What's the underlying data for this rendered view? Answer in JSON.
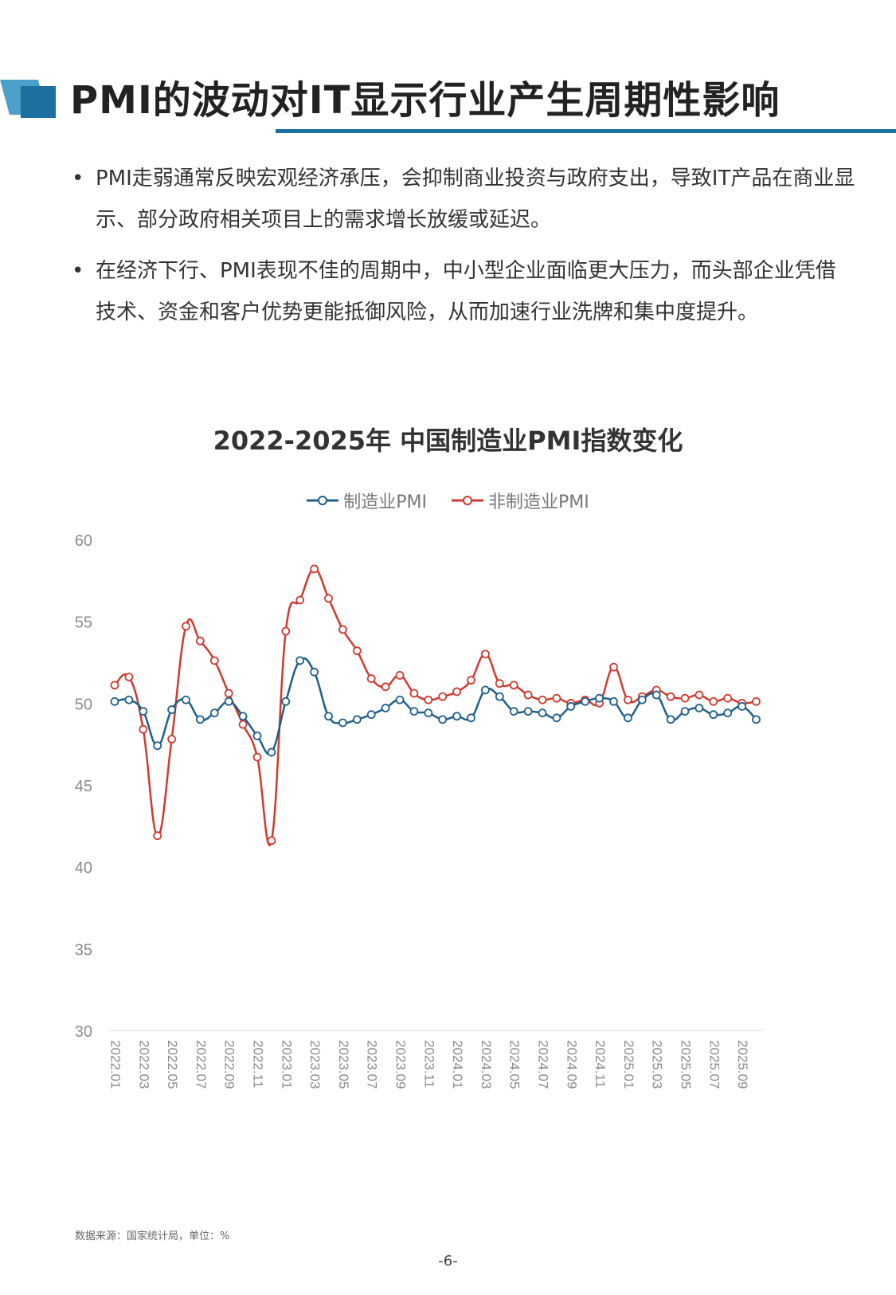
{
  "page": {
    "title": "PMI的波动对IT显示行业产生周期性影响",
    "bullets": [
      {
        "text": "PMI走弱通常反映宏观经济承压，会抑制商业投资与政府支出，导致IT产品在商业显示、部分政府相关项目上的需求增长放缓或延迟。"
      },
      {
        "text": "在经济下行、PMI表现不佳的周期中，中小型企业面临更大压力，而头部企业凭借技术、资金和客户优势更能抵御风险，从而加速行业洗牌和集中度提升。"
      }
    ],
    "bullet_symbol": "•",
    "source": "数据来源：国家统计局，单位：%",
    "page_number": "-6-"
  },
  "chart_data": {
    "type": "line",
    "title": "2022-2025年 中国制造业PMI指数变化",
    "xlabel": "",
    "ylabel": "",
    "ylim": [
      30,
      60
    ],
    "yticks": [
      "30",
      "35",
      "40",
      "45",
      "50",
      "55",
      "60"
    ],
    "x": [
      "2022.01",
      "2022.02",
      "2022.03",
      "2022.04",
      "2022.05",
      "2022.06",
      "2022.07",
      "2022.08",
      "2022.09",
      "2022.10",
      "2022.11",
      "2022.12",
      "2023.01",
      "2023.02",
      "2023.03",
      "2023.04",
      "2023.05",
      "2023.06",
      "2023.07",
      "2023.08",
      "2023.09",
      "2023.10",
      "2023.11",
      "2023.12",
      "2024.01",
      "2024.02",
      "2024.03",
      "2024.04",
      "2024.05",
      "2024.06",
      "2024.07",
      "2024.08",
      "2024.09",
      "2024.10",
      "2024.11",
      "2024.12",
      "2025.01",
      "2025.02",
      "2025.03",
      "2025.04",
      "2025.05",
      "2025.06",
      "2025.07",
      "2025.08",
      "2025.09",
      "2025.10"
    ],
    "xtick_labels": [
      "2022.01",
      "2022.03",
      "2022.05",
      "2022.07",
      "2022.09",
      "2022.11",
      "2023.01",
      "2023.03",
      "2023.05",
      "2023.07",
      "2023.09",
      "2023.11",
      "2024.01",
      "2024.03",
      "2024.05",
      "2024.07",
      "2024.09",
      "2024.11",
      "2025.01",
      "2025.03",
      "2025.05",
      "2025.07",
      "2025.09"
    ],
    "grid": false,
    "legend_position": "top",
    "series": [
      {
        "name": "制造业PMI",
        "color": "#1f5f8b",
        "values": [
          50.1,
          50.2,
          49.5,
          47.4,
          49.6,
          50.2,
          49.0,
          49.4,
          50.1,
          49.2,
          48.0,
          47.0,
          50.1,
          52.6,
          51.9,
          49.2,
          48.8,
          49.0,
          49.3,
          49.7,
          50.2,
          49.5,
          49.4,
          49.0,
          49.2,
          49.1,
          50.8,
          50.4,
          49.5,
          49.5,
          49.4,
          49.1,
          49.8,
          50.1,
          50.3,
          50.1,
          49.1,
          50.2,
          50.5,
          49.0,
          49.5,
          49.7,
          49.3,
          49.4,
          49.8,
          49.0
        ]
      },
      {
        "name": "非制造业PMI",
        "color": "#d03a30",
        "values": [
          51.1,
          51.6,
          48.4,
          41.9,
          47.8,
          54.7,
          53.8,
          52.6,
          50.6,
          48.7,
          46.7,
          41.6,
          54.4,
          56.3,
          58.2,
          56.4,
          54.5,
          53.2,
          51.5,
          51.0,
          51.7,
          50.6,
          50.2,
          50.4,
          50.7,
          51.4,
          53.0,
          51.2,
          51.1,
          50.5,
          50.2,
          50.3,
          50.0,
          50.2,
          50.0,
          52.2,
          50.2,
          50.4,
          50.8,
          50.4,
          50.3,
          50.5,
          50.1,
          50.3,
          50.0,
          50.1
        ]
      }
    ]
  }
}
